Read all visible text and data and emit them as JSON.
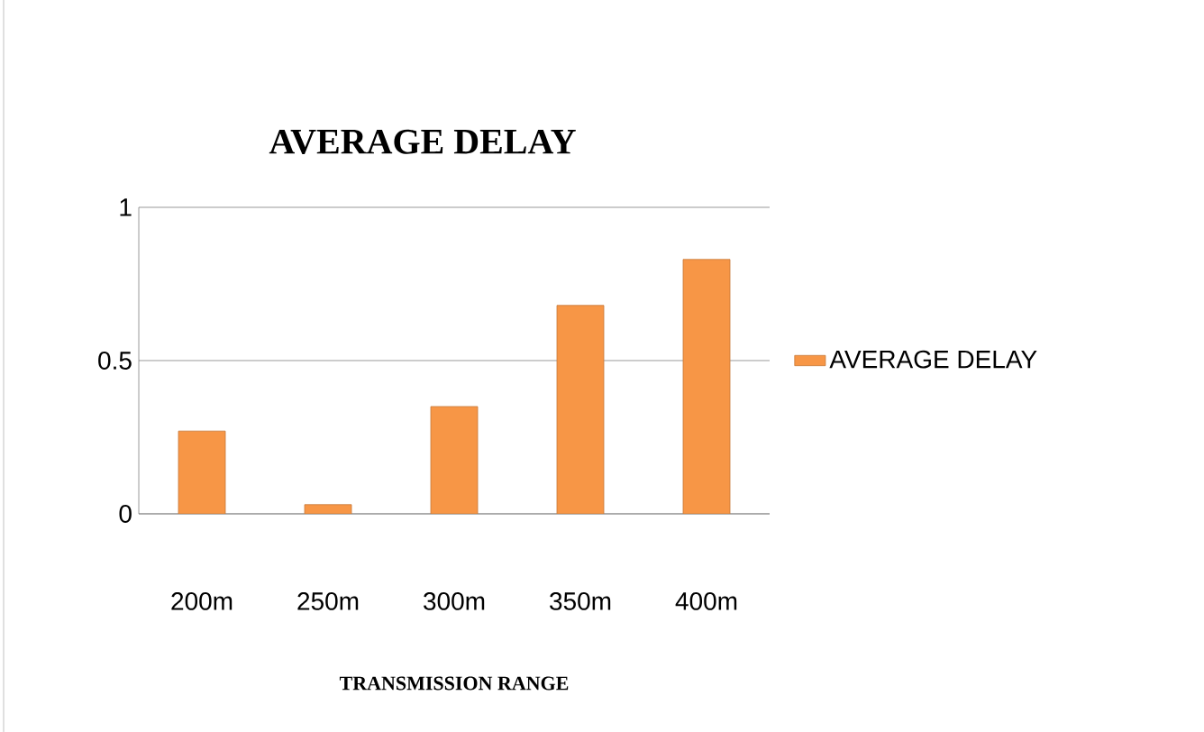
{
  "chart_data": {
    "type": "bar",
    "title": "AVERAGE DELAY",
    "xlabel": "TRANSMISSION RANGE",
    "categories": [
      "200m",
      "250m",
      "300m",
      "350m",
      "400m"
    ],
    "series": [
      {
        "name": "AVERAGE DELAY",
        "color": "#f79646",
        "values": [
          0.27,
          0.03,
          0.35,
          0.68,
          0.83
        ]
      }
    ],
    "ylim": [
      0,
      1
    ],
    "yticks": [
      0,
      0.5,
      1
    ],
    "grid": "y",
    "legend": "right"
  }
}
